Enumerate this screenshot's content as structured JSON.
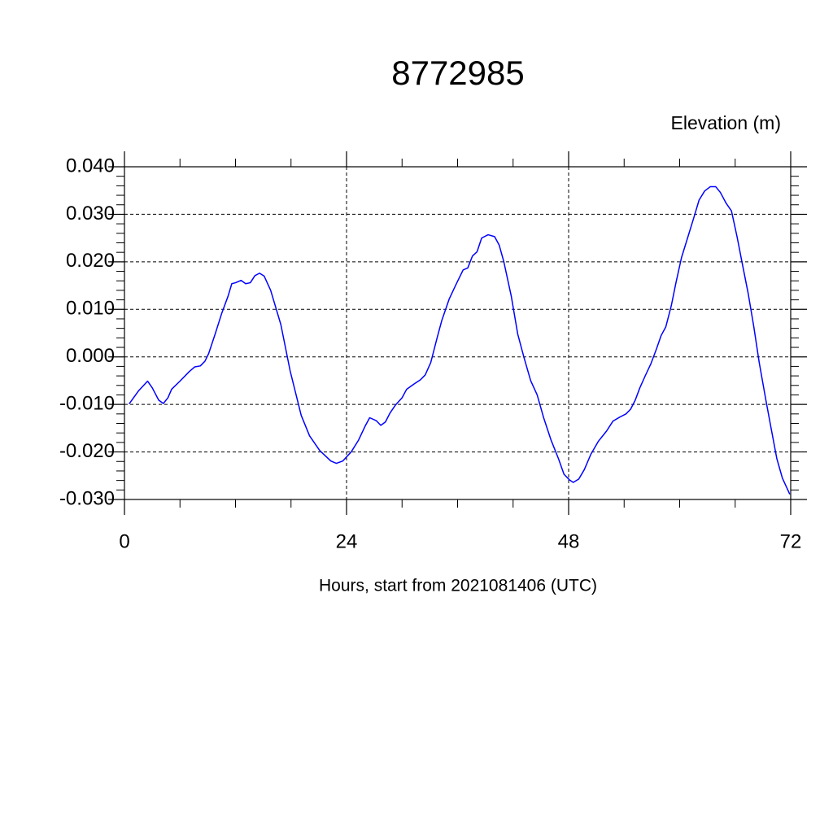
{
  "chart_data": {
    "type": "line",
    "title": "8772985",
    "subtitle": "Elevation (m)",
    "xlabel": "Hours, start from 2021081406 (UTC)",
    "color": "#0000ff",
    "grid": true,
    "xlim": [
      0,
      72
    ],
    "xticks": [
      0,
      24,
      48,
      72
    ],
    "xminorticks": [
      6,
      12,
      18,
      30,
      36,
      42,
      54,
      60,
      66
    ],
    "ylim": [
      -0.03,
      0.04
    ],
    "yticks": [
      {
        "value": -0.03,
        "label": "-0.030"
      },
      {
        "value": -0.02,
        "label": "-0.020"
      },
      {
        "value": -0.01,
        "label": "-0.010"
      },
      {
        "value": 0,
        "label": "0.000"
      },
      {
        "value": 0.01,
        "label": "0.010"
      },
      {
        "value": 0.02,
        "label": "0.020"
      },
      {
        "value": 0.03,
        "label": "0.030"
      },
      {
        "value": 0.04,
        "label": "0.040"
      }
    ],
    "yminorticks": [
      -0.028,
      -0.026,
      -0.024,
      -0.022,
      -0.018,
      -0.016,
      -0.014,
      -0.012,
      -0.008,
      -0.006,
      -0.004,
      -0.002,
      0.002,
      0.004,
      0.006,
      0.008,
      0.012,
      0.014,
      0.016,
      0.018,
      0.022,
      0.024,
      0.026,
      0.028,
      0.032,
      0.034,
      0.036,
      0.038
    ],
    "x": [
      0.5,
      1.5,
      2.5,
      3,
      3.7,
      4.2,
      4.7,
      5.1,
      6,
      7,
      7.6,
      8.2,
      8.7,
      9.1,
      9.8,
      10.5,
      11.2,
      11.6,
      12,
      12.6,
      13.1,
      13.6,
      14.1,
      14.6,
      15.1,
      15.8,
      16.9,
      17.9,
      19.1,
      20,
      21.1,
      22.3,
      22.9,
      23.6,
      24.5,
      25.3,
      26,
      26.5,
      27.2,
      27.7,
      28.2,
      28.7,
      29.3,
      30,
      30.5,
      31.3,
      32,
      32.5,
      33.1,
      33.8,
      34.3,
      35.1,
      35.8,
      36.6,
      37.1,
      37.6,
      38.1,
      38.6,
      39.3,
      40,
      40.5,
      41,
      41.8,
      42.5,
      43.2,
      43.9,
      44.6,
      45.3,
      46.1,
      46.9,
      47.5,
      48.1,
      48.5,
      49.1,
      49.7,
      50.4,
      51.2,
      52.1,
      52.8,
      53.5,
      54.2,
      54.7,
      55.2,
      55.7,
      56.3,
      56.9,
      57.5,
      58,
      58.5,
      59.1,
      59.6,
      60.2,
      60.9,
      61.5,
      62.1,
      62.7,
      63.3,
      63.9,
      64.4,
      65,
      65.6,
      66.2,
      66.8,
      67.4,
      68,
      68.6,
      69.3,
      69.9,
      70.5,
      71.1,
      71.9
    ],
    "values": [
      -0.0099,
      -0.0072,
      -0.0051,
      -0.0065,
      -0.0091,
      -0.0098,
      -0.0086,
      -0.0068,
      -0.0051,
      -0.0031,
      -0.0021,
      -0.0019,
      -0.0009,
      0.0007,
      0.0048,
      0.0091,
      0.0128,
      0.0154,
      0.0156,
      0.0161,
      0.0154,
      0.0156,
      0.0171,
      0.0176,
      0.017,
      0.014,
      0.0068,
      -0.0029,
      -0.0123,
      -0.0166,
      -0.0197,
      -0.0219,
      -0.0224,
      -0.0219,
      -0.02,
      -0.0175,
      -0.0146,
      -0.0128,
      -0.0134,
      -0.0144,
      -0.0137,
      -0.0118,
      -0.0101,
      -0.0086,
      -0.0068,
      -0.0057,
      -0.0048,
      -0.0038,
      -0.0012,
      0.0041,
      0.0077,
      0.0122,
      0.0151,
      0.0183,
      0.0187,
      0.0212,
      0.0221,
      0.025,
      0.0257,
      0.0253,
      0.0235,
      0.02,
      0.0128,
      0.0048,
      -0.0003,
      -0.005,
      -0.008,
      -0.0128,
      -0.0175,
      -0.0214,
      -0.0247,
      -0.0259,
      -0.0264,
      -0.0257,
      -0.0237,
      -0.0205,
      -0.0178,
      -0.0156,
      -0.0135,
      -0.0127,
      -0.012,
      -0.011,
      -0.0091,
      -0.0065,
      -0.0039,
      -0.0014,
      0.0017,
      0.0045,
      0.0063,
      0.0108,
      0.0156,
      0.0209,
      0.0253,
      0.0291,
      0.033,
      0.0349,
      0.0358,
      0.0358,
      0.0346,
      0.0324,
      0.0307,
      0.0253,
      0.0193,
      0.0134,
      0.0065,
      -0.0012,
      -0.0089,
      -0.0152,
      -0.0214,
      -0.0255,
      -0.0289
    ]
  }
}
